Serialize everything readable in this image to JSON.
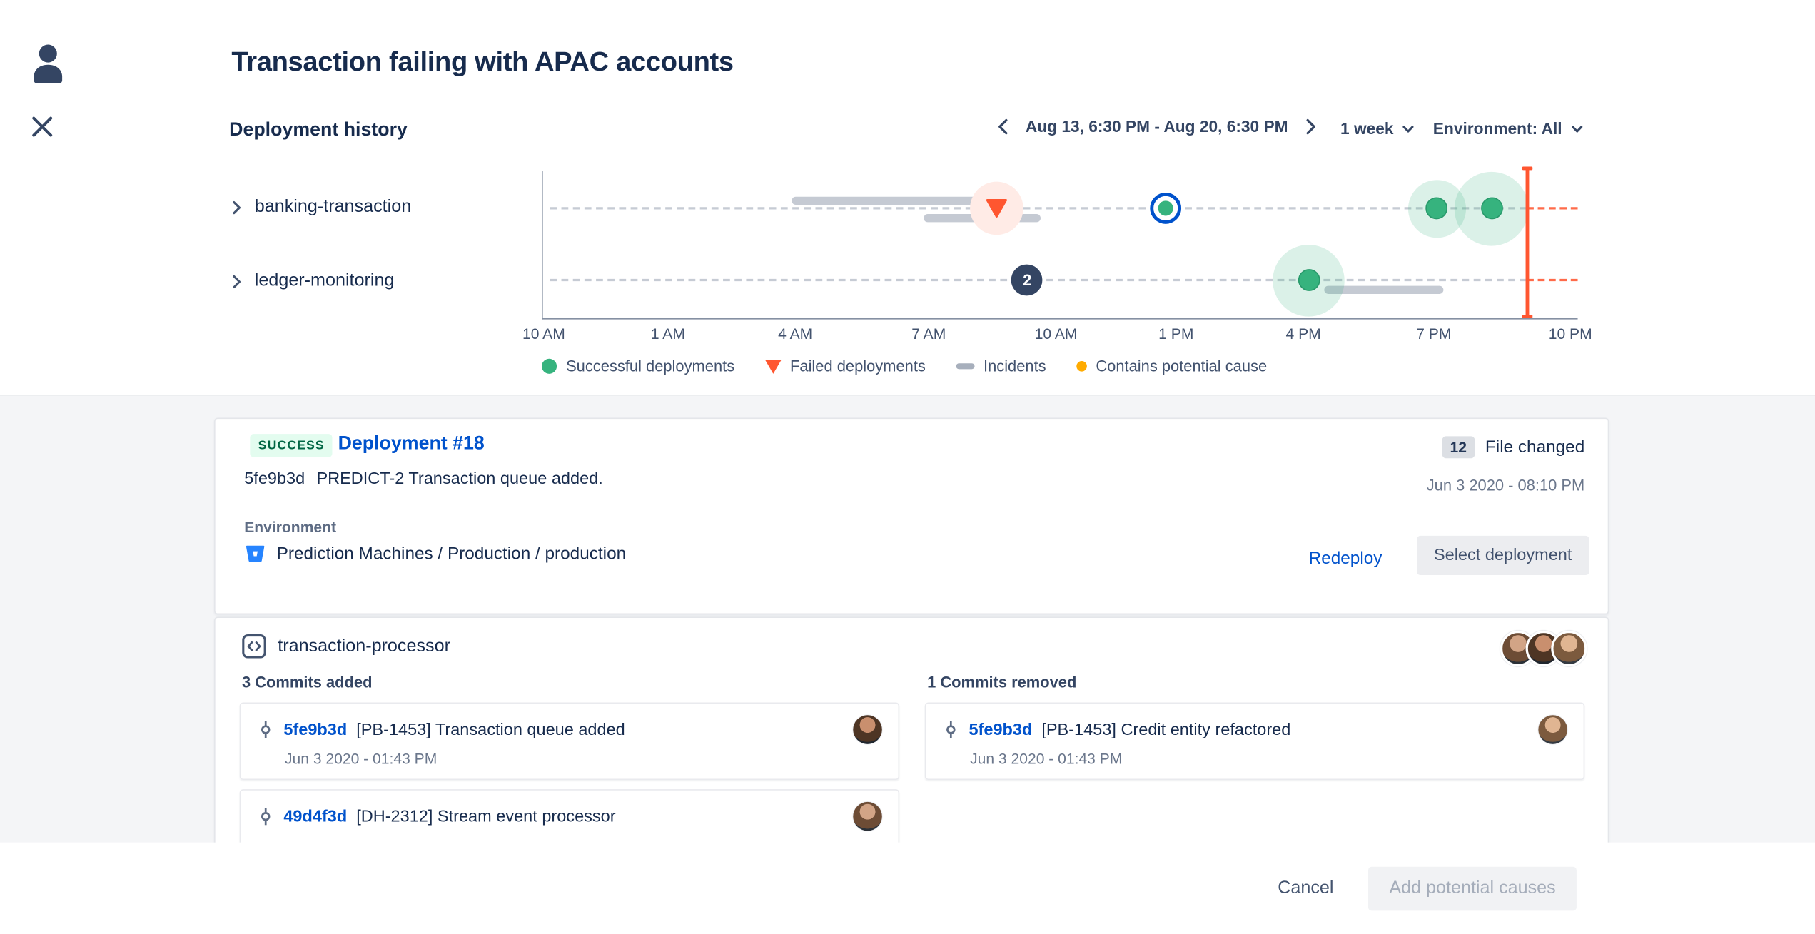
{
  "colors": {
    "accent_blue": "#0052CC",
    "success_green": "#36B37E",
    "failed_red": "#FF5630",
    "potential_cause_orange": "#FFAB00",
    "incident_gray": "#C5CAD3",
    "text_dark": "#172B4D",
    "background_gray": "#F4F5F7"
  },
  "header": {
    "title": "Transaction failing with APAC accounts"
  },
  "toolbar": {
    "section_title": "Deployment history",
    "date_range": "Aug 13, 6:30 PM - Aug 20, 6:30 PM",
    "period": "1 week",
    "environment": "Environment: All"
  },
  "chart_data": {
    "type": "timeline",
    "title": "Deployment history",
    "x_ticks": [
      "10 AM",
      "1 AM",
      "4 AM",
      "7 AM",
      "10 AM",
      "1 PM",
      "4 PM",
      "7 PM",
      "10 PM"
    ],
    "tick_positions_pct": [
      0.2,
      12.2,
      24.5,
      37.4,
      49.7,
      61.3,
      73.6,
      86.2,
      99.4
    ],
    "rows": [
      {
        "label": "banking-transaction"
      },
      {
        "label": "ledger-monitoring"
      }
    ],
    "now_line_pct": 95.1,
    "events": [
      {
        "kind": "incident-bar",
        "row": 0,
        "start_pct": 24.0,
        "end_pct": 43.3,
        "dy": -7
      },
      {
        "kind": "incident-bar",
        "row": 0,
        "start_pct": 36.8,
        "end_pct": 48.1,
        "dy": 8
      },
      {
        "kind": "failed-deployment",
        "row": 0,
        "pct": 43.8,
        "halo": 46
      },
      {
        "kind": "selected-deployment",
        "row": 0,
        "pct": 60.2
      },
      {
        "kind": "successful-deployment",
        "row": 0,
        "pct": 86.4,
        "halo": 50
      },
      {
        "kind": "successful-deployment",
        "row": 0,
        "pct": 91.7,
        "halo": 64
      },
      {
        "kind": "grouped-events",
        "row": 1,
        "pct": 46.8,
        "count": "2"
      },
      {
        "kind": "successful-deployment",
        "row": 1,
        "pct": 74.0,
        "halo": 62
      },
      {
        "kind": "incident-bar",
        "row": 1,
        "start_pct": 75.5,
        "end_pct": 87.0,
        "dy": 8
      }
    ],
    "legend": [
      {
        "kind": "successful",
        "label": "Successful deployments"
      },
      {
        "kind": "failed",
        "label": "Failed deployments"
      },
      {
        "kind": "incident",
        "label": "Incidents"
      },
      {
        "kind": "potential-cause",
        "label": "Contains potential cause"
      }
    ]
  },
  "deployment_card": {
    "status_badge": "SUCCESS",
    "title": "Deployment #18",
    "commit_hash": "5fe9b3d",
    "commit_message": "PREDICT-2 Transaction queue added.",
    "files_changed_count": "12",
    "files_changed_label": "File changed",
    "deployed_at": "Jun 3 2020 - 08:10 PM",
    "environment_label": "Environment",
    "environment_path": "Prediction Machines / Production / production",
    "redeploy_label": "Redeploy",
    "select_deployment_label": "Select deployment"
  },
  "commits_card": {
    "repo_name": "transaction-processor",
    "added_header": "3 Commits added",
    "removed_header": "1 Commits removed",
    "added": [
      {
        "hash": "5fe9b3d",
        "message": "[PB-1453] Transaction queue added",
        "date": "Jun 3 2020 - 01:43 PM"
      },
      {
        "hash": "49d4f3d",
        "message": "[DH-2312] Stream event processor",
        "date": ""
      }
    ],
    "removed": [
      {
        "hash": "5fe9b3d",
        "message": "[PB-1453] Credit entity refactored",
        "date": "Jun 3 2020 - 01:43 PM"
      }
    ]
  },
  "footer": {
    "cancel_label": "Cancel",
    "submit_label": "Add potential causes"
  }
}
